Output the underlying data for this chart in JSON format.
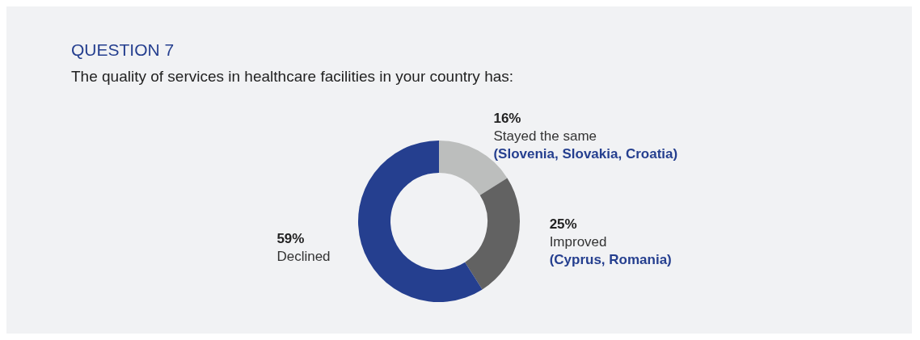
{
  "chart_data": {
    "type": "donut",
    "title": "QUESTION 7",
    "subtitle": "The quality of services in healthcare facilities in your country has:",
    "categories": [
      "Stayed the same",
      "Improved",
      "Declined"
    ],
    "values": [
      16,
      25,
      59
    ],
    "colors": [
      "#bcbebd",
      "#626262",
      "#253f8f"
    ],
    "value_labels": [
      "16%",
      "25%",
      "59%"
    ],
    "annotations": [
      {
        "text": "(Slovenia, Slovakia, Croatia)",
        "x": "Stayed the same"
      },
      {
        "text": "(Cyprus, Romania)",
        "x": "Improved"
      }
    ],
    "legend": false
  }
}
